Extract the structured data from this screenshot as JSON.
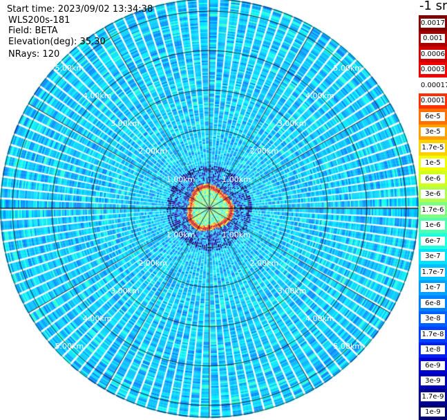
{
  "header": {
    "start_time": "Start time: 2023/09/02 13:34:38",
    "instrument": "WLS200s-181",
    "field": "Field: BETA",
    "elevation": "Elevation(deg): 35.30",
    "nrays": "NRays: 120"
  },
  "colorbar": {
    "unit_label": "-1 sr",
    "labels": [
      "0.0017",
      "0.001",
      "0.0006",
      "0.0003",
      "0.00017",
      "0.0001",
      "6e-5",
      "3e-5",
      "1.7e-5",
      "1e-5",
      "6e-6",
      "3e-6",
      "1.7e-6",
      "1e-6",
      "6e-7",
      "3e-7",
      "1.7e-7",
      "1e-7",
      "6e-8",
      "3e-8",
      "1.7e-8",
      "1e-8",
      "6e-9",
      "3e-9",
      "1.7e-9",
      "1e-9"
    ],
    "colors": [
      "#800000",
      "#a80000",
      "#d00000",
      "#f00000",
      "#ffffff",
      "#ff3000",
      "#ff7000",
      "#ffa000",
      "#ffd000",
      "#f0ff00",
      "#d0ff20",
      "#b0ff50",
      "#80ff80",
      "#50ffb0",
      "#20ffe0",
      "#00e0ff",
      "#00c0ff",
      "#00a0ff",
      "#0080ff",
      "#0060ff",
      "#0040ff",
      "#0020f0",
      "#0000d0",
      "#0000b0",
      "#000090",
      "#000070"
    ]
  },
  "chart_data": {
    "type": "heatmap",
    "projection": "polar-ppi",
    "field": "BETA",
    "n_rays": 120,
    "elevation_deg": 35.3,
    "max_range_km": 5.3,
    "range_rings_km": [
      1.0,
      2.0,
      3.0,
      4.0,
      5.0
    ],
    "ring_labels": [
      "1.00km",
      "2.00km",
      "3.00km",
      "4.00km",
      "5.00km"
    ],
    "ring_label_angles_deg": [
      45,
      135,
      225,
      315
    ],
    "spokes_every_deg": 30,
    "values_note_range_km": {
      "near_field_high": [
        0.45,
        0.65
      ],
      "background": "1e-8 to 3e-8"
    },
    "colorscale": "log",
    "vmin": 1e-09,
    "vmax": 0.0017,
    "grid": true
  }
}
